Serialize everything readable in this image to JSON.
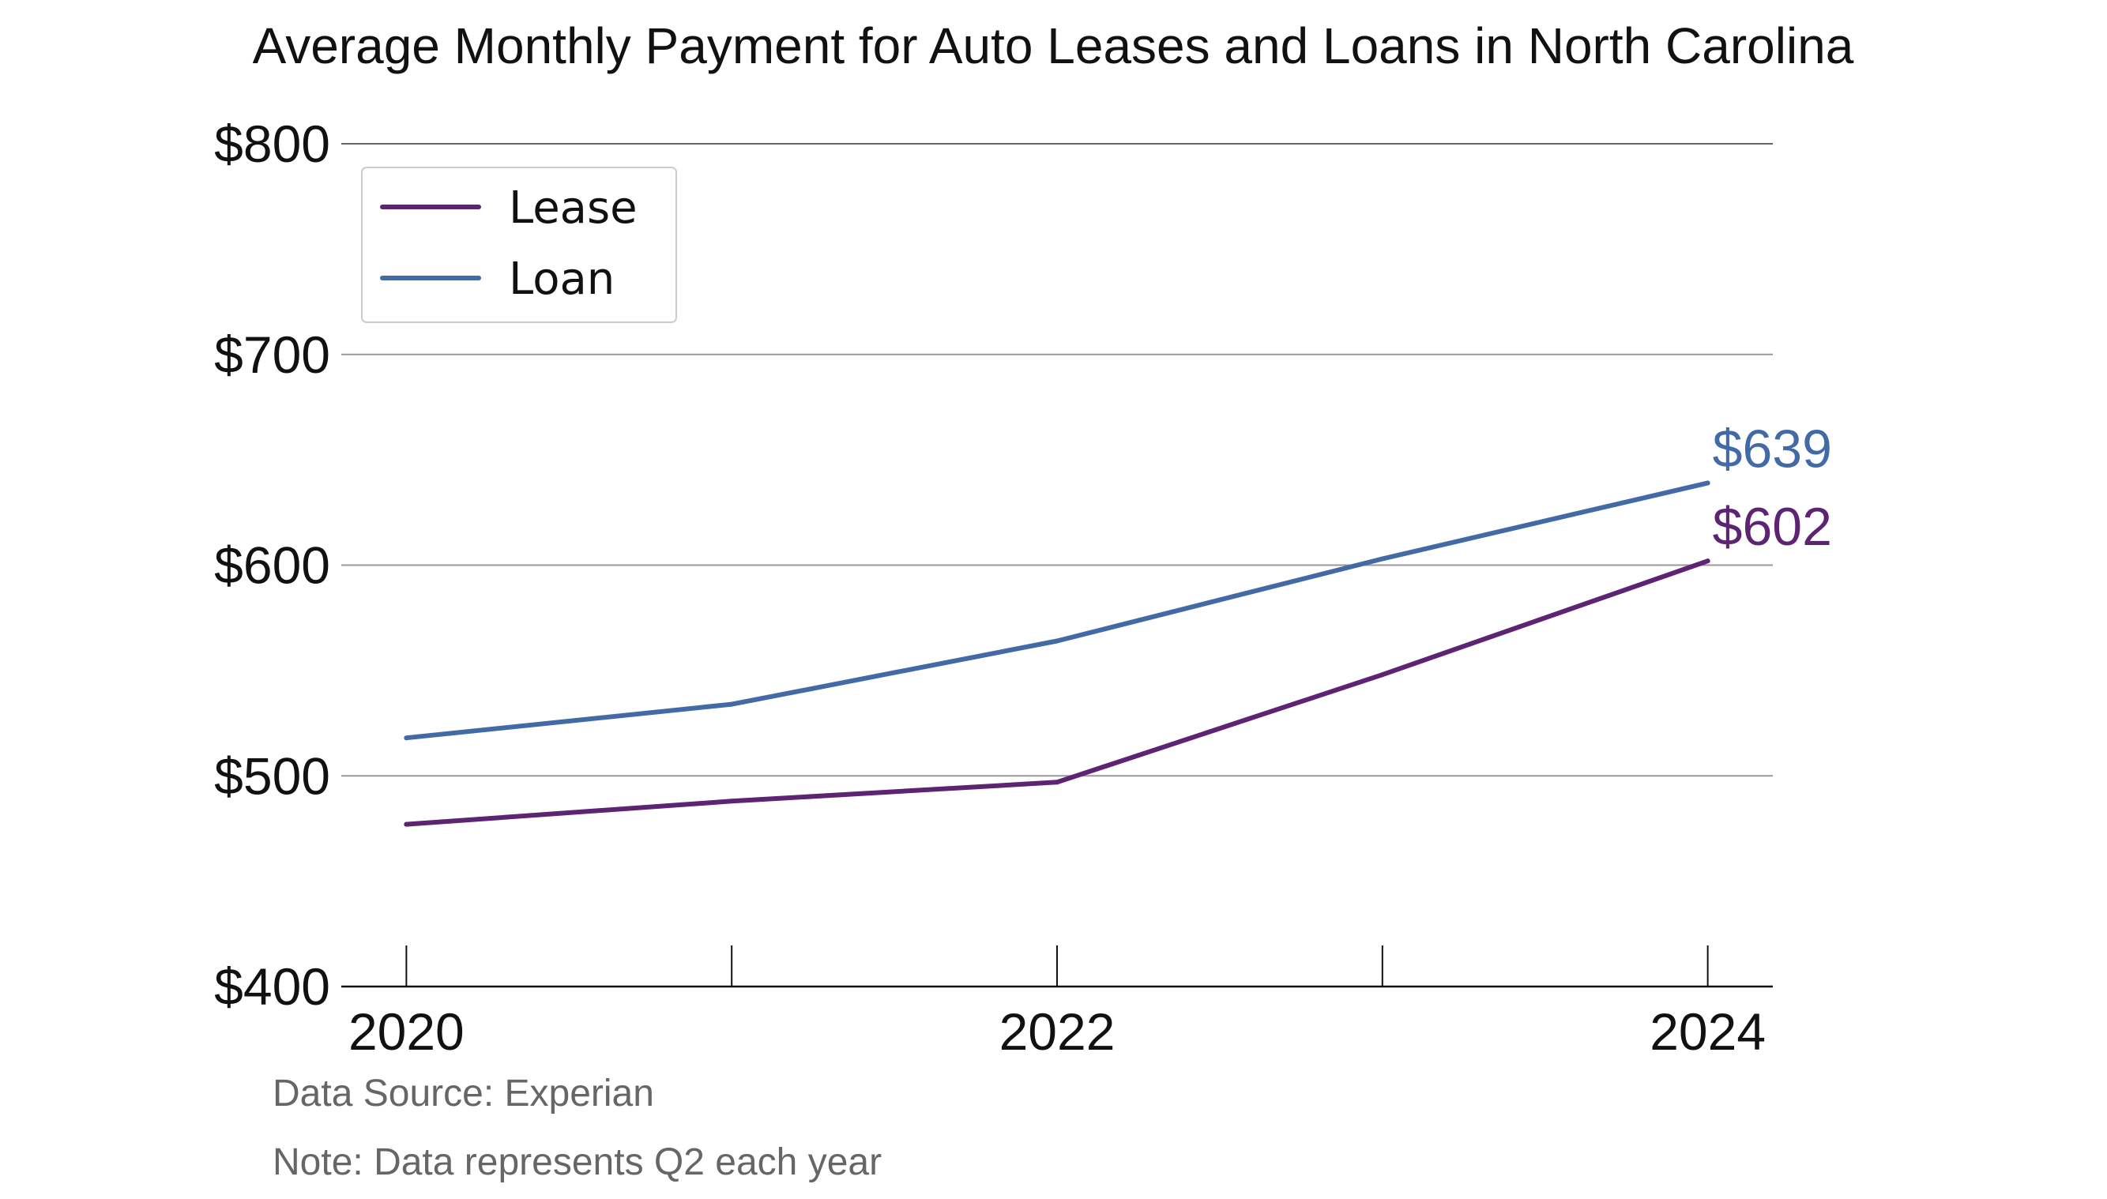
{
  "chart_data": {
    "type": "line",
    "title": "Average Monthly Payment for Auto Leases and Loans in North Carolina",
    "xlabel": "",
    "ylabel": "",
    "x": [
      2020,
      2021,
      2022,
      2023,
      2024
    ],
    "x_tick_labels": [
      "2020",
      "2022",
      "2024"
    ],
    "x_tick_values": [
      2020,
      2022,
      2024
    ],
    "x_minor_ticks": [
      2020,
      2021,
      2022,
      2023,
      2024
    ],
    "xlim": [
      2019.8,
      2024.2
    ],
    "ylim": [
      400,
      800
    ],
    "y_ticks": [
      400,
      500,
      600,
      700,
      800
    ],
    "y_tick_labels": [
      "$400",
      "$500",
      "$600",
      "$700",
      "$800"
    ],
    "grid": "horizontal",
    "legend_position": "top-left",
    "series": [
      {
        "name": "Lease",
        "color": "#5c2472",
        "values": [
          477,
          488,
          497,
          548,
          602
        ],
        "end_label": "$602"
      },
      {
        "name": "Loan",
        "color": "#426aa6",
        "values": [
          518,
          534,
          564,
          603,
          639
        ],
        "end_label": "$639"
      }
    ],
    "source": "Data Source: Experian",
    "note": "Note: Data represents Q2 each year"
  }
}
